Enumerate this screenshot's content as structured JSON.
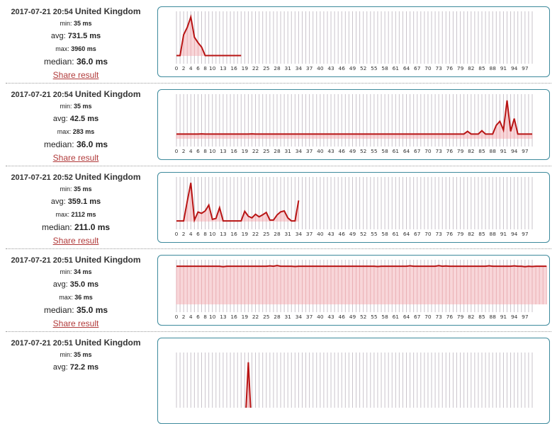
{
  "results": [
    {
      "timestamp": "2017-07-21 20:54",
      "location": "United Kingdom",
      "min_label": "min:",
      "min_value": "35 ms",
      "avg_label": "avg:",
      "avg_value": "731.5 ms",
      "max_label": "max:",
      "max_value": "3960 ms",
      "median_label": "median:",
      "median_value": "36.0 ms",
      "share_label": "Share result",
      "chart_data": {
        "type": "area",
        "x_ticks": [
          "0",
          "2",
          "4",
          "6",
          "8",
          "10",
          "13",
          "16",
          "19",
          "22",
          "25",
          "28",
          "31",
          "34",
          "37",
          "40",
          "43",
          "46",
          "49",
          "52",
          "55",
          "58",
          "61",
          "64",
          "67",
          "70",
          "73",
          "76",
          "79",
          "82",
          "85",
          "88",
          "91",
          "94",
          "97"
        ],
        "xlim": [
          0,
          99
        ],
        "ylim": [
          0,
          4100
        ],
        "values": [
          35,
          35,
          2150,
          2900,
          3960,
          1900,
          1350,
          900,
          35,
          35,
          35,
          35,
          35,
          35,
          35,
          35,
          35,
          35,
          35
        ]
      }
    },
    {
      "timestamp": "2017-07-21 20:54",
      "location": "United Kingdom",
      "min_label": "min:",
      "min_value": "35 ms",
      "avg_label": "avg:",
      "avg_value": "42.5 ms",
      "max_label": "max:",
      "max_value": "283 ms",
      "median_label": "median:",
      "median_value": "36.0 ms",
      "share_label": "Share result",
      "chart_data": {
        "type": "area",
        "x_ticks": [
          "0",
          "2",
          "4",
          "6",
          "8",
          "10",
          "13",
          "16",
          "19",
          "22",
          "25",
          "28",
          "31",
          "34",
          "37",
          "40",
          "43",
          "46",
          "49",
          "52",
          "55",
          "58",
          "61",
          "64",
          "67",
          "70",
          "73",
          "76",
          "79",
          "82",
          "85",
          "88",
          "91",
          "94",
          "97"
        ],
        "xlim": [
          0,
          99
        ],
        "ylim": [
          0,
          300
        ],
        "values": [
          35,
          35,
          35,
          35,
          35,
          35,
          35,
          36,
          35,
          35,
          35,
          35,
          35,
          35,
          35,
          35,
          35,
          35,
          35,
          35,
          35,
          36,
          35,
          35,
          35,
          35,
          35,
          35,
          35,
          35,
          35,
          35,
          35,
          35,
          35,
          35,
          35,
          35,
          35,
          35,
          35,
          35,
          35,
          35,
          35,
          35,
          35,
          35,
          35,
          35,
          35,
          35,
          35,
          35,
          35,
          35,
          35,
          35,
          35,
          35,
          35,
          35,
          35,
          35,
          35,
          35,
          35,
          35,
          35,
          35,
          35,
          35,
          35,
          35,
          35,
          35,
          35,
          35,
          35,
          35,
          35,
          55,
          35,
          35,
          35,
          60,
          35,
          35,
          35,
          100,
          130,
          65,
          285,
          55,
          150,
          35,
          35,
          35,
          35,
          35
        ]
      }
    },
    {
      "timestamp": "2017-07-21 20:52",
      "location": "United Kingdom",
      "min_label": "min:",
      "min_value": "35 ms",
      "avg_label": "avg:",
      "avg_value": "359.1 ms",
      "max_label": "max:",
      "max_value": "2112 ms",
      "median_label": "median:",
      "median_value": "211.0 ms",
      "share_label": "Share result",
      "chart_data": {
        "type": "area",
        "x_ticks": [
          "0",
          "2",
          "4",
          "6",
          "8",
          "10",
          "13",
          "16",
          "19",
          "22",
          "25",
          "28",
          "31",
          "34",
          "37",
          "40",
          "43",
          "46",
          "49",
          "52",
          "55",
          "58",
          "61",
          "64",
          "67",
          "70",
          "73",
          "76",
          "79",
          "82",
          "85",
          "88",
          "91",
          "94",
          "97"
        ],
        "xlim": [
          0,
          99
        ],
        "ylim": [
          0,
          2200
        ],
        "values": [
          35,
          35,
          35,
          1100,
          2112,
          80,
          520,
          450,
          580,
          900,
          120,
          170,
          760,
          35,
          35,
          35,
          35,
          35,
          35,
          560,
          290,
          200,
          400,
          260,
          370,
          500,
          80,
          80,
          360,
          530,
          580,
          200,
          35,
          35,
          1150
        ]
      }
    },
    {
      "timestamp": "2017-07-21 20:51",
      "location": "United Kingdom",
      "min_label": "min:",
      "min_value": "34 ms",
      "avg_label": "avg:",
      "avg_value": "35.0 ms",
      "max_label": "max:",
      "max_value": "36 ms",
      "median_label": "median:",
      "median_value": "35.0 ms",
      "share_label": "Share result",
      "chart_data": {
        "type": "area",
        "x_ticks": [
          "0",
          "2",
          "4",
          "6",
          "8",
          "10",
          "13",
          "16",
          "19",
          "22",
          "25",
          "28",
          "31",
          "34",
          "37",
          "40",
          "43",
          "46",
          "49",
          "52",
          "55",
          "58",
          "61",
          "64",
          "67",
          "70",
          "73",
          "76",
          "79",
          "82",
          "85",
          "88",
          "91",
          "94",
          "97"
        ],
        "xlim": [
          0,
          99
        ],
        "ylim": [
          0,
          37
        ],
        "values": [
          35,
          35,
          35,
          35,
          35,
          35,
          35,
          35,
          35,
          35,
          35,
          35,
          35,
          34.6,
          35,
          35,
          35,
          35,
          35,
          35,
          35,
          35,
          35,
          35,
          35,
          35,
          35.3,
          35,
          35.6,
          35,
          35,
          35,
          35,
          34.7,
          35,
          35,
          35,
          35,
          35,
          35,
          35,
          35,
          35,
          35,
          35,
          35,
          35,
          35,
          35,
          35,
          35,
          35,
          35,
          35,
          35,
          35,
          34.7,
          35,
          35,
          35,
          35,
          35,
          35,
          35,
          35,
          35.4,
          35,
          35,
          35,
          35,
          35,
          35,
          35,
          35.5,
          35,
          35.2,
          35,
          35,
          35,
          35,
          35,
          35,
          35,
          35,
          35,
          35,
          35,
          35.4,
          35,
          35,
          35,
          35,
          35,
          35,
          35.3,
          35,
          35,
          34.6,
          35,
          34.7,
          35,
          35,
          35,
          35
        ]
      }
    },
    {
      "timestamp": "2017-07-21 20:51",
      "location": "United Kingdom",
      "min_label": "min:",
      "min_value": "35 ms",
      "avg_label": "avg:",
      "avg_value": "72.2 ms",
      "max_label": "",
      "max_value": "",
      "median_label": "",
      "median_value": "",
      "share_label": "",
      "chart_data": {
        "type": "area",
        "x_ticks": [],
        "xlim": [
          0,
          99
        ],
        "ylim": [
          0,
          1000
        ],
        "values": [
          35,
          35,
          35,
          35,
          35,
          35,
          35,
          35,
          35,
          35,
          35,
          35,
          35,
          35,
          35,
          35,
          35,
          35,
          35,
          35,
          900,
          35,
          35,
          35,
          35
        ]
      }
    }
  ],
  "colors": {
    "line": "#b81414",
    "fill": "#f7cfd2",
    "grid": "#c9c3cb",
    "border": "#3d8a9c",
    "link": "#b13a3a"
  }
}
